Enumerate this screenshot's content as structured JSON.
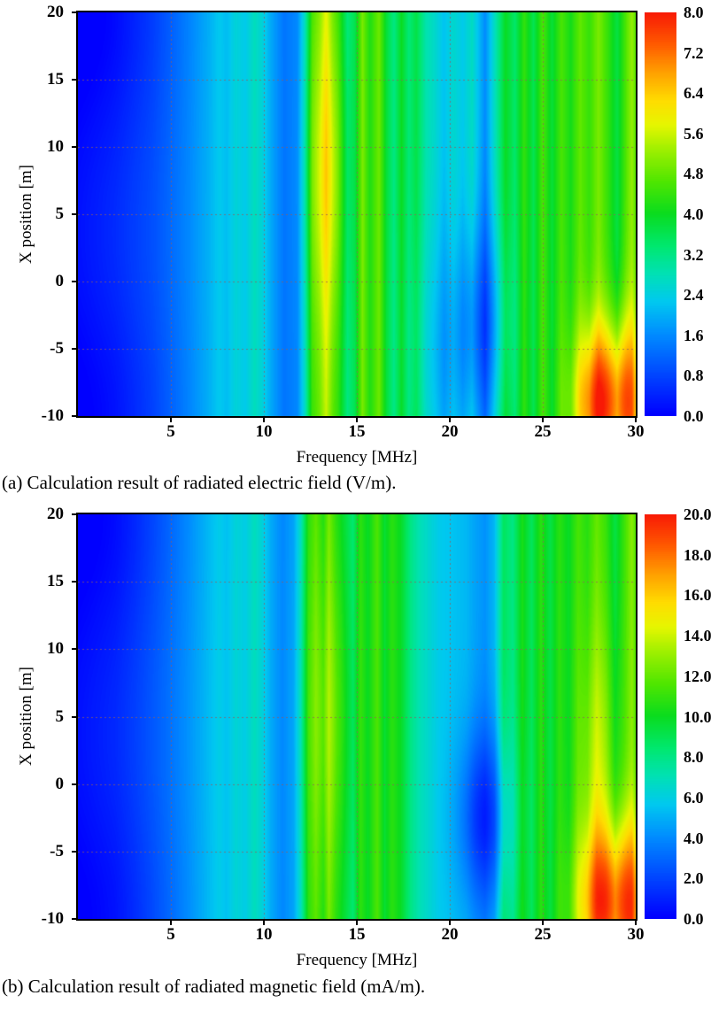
{
  "page": {
    "background": "#ffffff"
  },
  "colormap": {
    "name": "jet-rainbow",
    "stops": [
      [
        0.0,
        0,
        0,
        255
      ],
      [
        0.1,
        0,
        70,
        255
      ],
      [
        0.2,
        0,
        140,
        255
      ],
      [
        0.28,
        0,
        200,
        240
      ],
      [
        0.35,
        0,
        225,
        180
      ],
      [
        0.42,
        0,
        232,
        110
      ],
      [
        0.5,
        10,
        220,
        30
      ],
      [
        0.58,
        80,
        230,
        0
      ],
      [
        0.66,
        160,
        240,
        0
      ],
      [
        0.72,
        230,
        246,
        0
      ],
      [
        0.78,
        255,
        220,
        0
      ],
      [
        0.85,
        255,
        160,
        0
      ],
      [
        0.92,
        255,
        90,
        0
      ],
      [
        1.0,
        248,
        25,
        5
      ]
    ]
  },
  "grid": {
    "color": "rgba(145,95,95,0.75)",
    "dash": [
      2,
      3
    ],
    "x_lines": [
      5,
      10,
      15,
      20,
      25
    ],
    "y_lines": [
      15,
      10,
      5,
      0,
      -5
    ]
  },
  "chart_data": [
    {
      "type": "heatmap",
      "caption": "(a) Calculation result of radiated electric field (V/m).",
      "xlabel": "Frequency [MHz]",
      "ylabel": "X position [m]",
      "unit": "V/m",
      "xlim": [
        0,
        30
      ],
      "ylim": [
        -10,
        20
      ],
      "xticks": [
        5,
        10,
        15,
        20,
        25,
        30
      ],
      "yticks": [
        20,
        15,
        10,
        5,
        0,
        -5,
        -10
      ],
      "colorbar": {
        "min": 0.0,
        "max": 8.0,
        "tick_labels": [
          "8.0",
          "7.2",
          "6.4",
          "5.6",
          "4.8",
          "4.0",
          "3.2",
          "2.4",
          "1.6",
          "0.8",
          "0.0"
        ]
      },
      "freq_profile": [
        [
          0,
          0.25
        ],
        [
          2,
          0.55
        ],
        [
          3,
          0.75
        ],
        [
          4,
          0.95
        ],
        [
          5,
          1.25
        ],
        [
          6,
          1.6
        ],
        [
          7,
          2.0
        ],
        [
          7.6,
          2.3
        ],
        [
          8.0,
          2.15
        ],
        [
          8.5,
          2.5
        ],
        [
          9.0,
          2.3
        ],
        [
          9.5,
          2.75
        ],
        [
          9.9,
          2.5
        ],
        [
          10.4,
          1.9
        ],
        [
          11.1,
          1.35
        ],
        [
          11.8,
          1.55
        ],
        [
          12.2,
          2.6
        ],
        [
          12.6,
          4.4
        ],
        [
          13.0,
          4.8
        ],
        [
          13.35,
          5.5
        ],
        [
          13.7,
          4.7
        ],
        [
          14.0,
          4.3
        ],
        [
          14.5,
          3.2
        ],
        [
          14.9,
          3.6
        ],
        [
          15.3,
          5.0
        ],
        [
          15.7,
          4.2
        ],
        [
          16.2,
          4.9
        ],
        [
          16.6,
          3.8
        ],
        [
          17.0,
          3.2
        ],
        [
          17.4,
          4.0
        ],
        [
          17.8,
          3.3
        ],
        [
          18.2,
          3.7
        ],
        [
          18.7,
          2.9
        ],
        [
          19.2,
          2.6
        ],
        [
          19.7,
          2.2
        ],
        [
          20.2,
          2.6
        ],
        [
          20.7,
          2.3
        ],
        [
          21.2,
          2.7
        ],
        [
          21.9,
          1.6
        ],
        [
          22.5,
          2.9
        ],
        [
          23.0,
          4.0
        ],
        [
          23.5,
          3.4
        ],
        [
          24.0,
          4.4
        ],
        [
          24.5,
          3.6
        ],
        [
          25.0,
          4.6
        ],
        [
          25.5,
          3.8
        ],
        [
          26.0,
          4.6
        ],
        [
          26.5,
          4.1
        ],
        [
          27.0,
          4.8
        ],
        [
          27.5,
          4.4
        ],
        [
          28.0,
          5.0
        ],
        [
          28.5,
          4.4
        ],
        [
          29.0,
          3.7
        ],
        [
          29.5,
          4.7
        ],
        [
          29.8,
          5.2
        ],
        [
          30,
          4.7
        ]
      ],
      "hotspots": [
        {
          "f": 28.2,
          "x": -9,
          "sf": 1.0,
          "sx": 4.0,
          "amp": 3.3
        },
        {
          "f": 29.6,
          "x": -9,
          "sf": 0.5,
          "sx": 4.5,
          "amp": 1.5
        },
        {
          "f": 21.9,
          "x": -3,
          "sf": 0.9,
          "sx": 5.0,
          "amp": -0.9
        },
        {
          "f": 19.9,
          "x": -5,
          "sf": 1.3,
          "sx": 6.0,
          "amp": -0.5
        },
        {
          "f": 13.35,
          "x": 8,
          "sf": 0.7,
          "sx": 8.0,
          "amp": 1.0
        },
        {
          "f": 1.2,
          "x": 20,
          "sf": 2.6,
          "sx": 7.0,
          "amp": -0.45
        },
        {
          "f": 1.2,
          "x": -10,
          "sf": 2.6,
          "sx": 6.0,
          "amp": -0.35
        }
      ]
    },
    {
      "type": "heatmap",
      "caption": "(b) Calculation result of radiated magnetic field (mA/m).",
      "xlabel": "Frequency [MHz]",
      "ylabel": "X position [m]",
      "unit": "mA/m",
      "xlim": [
        0,
        30
      ],
      "ylim": [
        -10,
        20
      ],
      "xticks": [
        5,
        10,
        15,
        20,
        25,
        30
      ],
      "yticks": [
        20,
        15,
        10,
        5,
        0,
        -5,
        -10
      ],
      "colorbar": {
        "min": 0.0,
        "max": 20.0,
        "tick_labels": [
          "20.0",
          "18.0",
          "16.0",
          "14.0",
          "12.0",
          "10.0",
          "8.0",
          "6.0",
          "4.0",
          "2.0",
          "0.0"
        ]
      },
      "freq_profile": [
        [
          0,
          0.6
        ],
        [
          2,
          1.3
        ],
        [
          3,
          1.9
        ],
        [
          4,
          2.6
        ],
        [
          5,
          3.4
        ],
        [
          6,
          4.3
        ],
        [
          7,
          5.3
        ],
        [
          7.6,
          5.9
        ],
        [
          8.0,
          5.5
        ],
        [
          8.5,
          6.3
        ],
        [
          9.0,
          5.9
        ],
        [
          9.5,
          6.9
        ],
        [
          9.9,
          6.2
        ],
        [
          10.4,
          4.8
        ],
        [
          11.0,
          3.9
        ],
        [
          11.6,
          4.6
        ],
        [
          12.0,
          6.8
        ],
        [
          12.4,
          10.6
        ],
        [
          12.8,
          11.6
        ],
        [
          13.2,
          10.2
        ],
        [
          13.5,
          12.0
        ],
        [
          13.9,
          10.4
        ],
        [
          14.3,
          9.4
        ],
        [
          14.8,
          8.2
        ],
        [
          15.2,
          10.8
        ],
        [
          15.6,
          9.8
        ],
        [
          16.1,
          11.6
        ],
        [
          16.5,
          9.6
        ],
        [
          16.9,
          10.8
        ],
        [
          17.4,
          9.8
        ],
        [
          17.9,
          8.0
        ],
        [
          18.4,
          7.0
        ],
        [
          18.9,
          6.4
        ],
        [
          19.4,
          5.8
        ],
        [
          19.9,
          5.6
        ],
        [
          20.4,
          5.4
        ],
        [
          20.9,
          5.2
        ],
        [
          21.4,
          4.6
        ],
        [
          21.9,
          4.2
        ],
        [
          22.4,
          5.2
        ],
        [
          22.9,
          8.8
        ],
        [
          23.4,
          8.0
        ],
        [
          23.9,
          10.4
        ],
        [
          24.4,
          8.8
        ],
        [
          24.9,
          10.8
        ],
        [
          25.4,
          9.2
        ],
        [
          25.9,
          10.8
        ],
        [
          26.4,
          9.8
        ],
        [
          26.9,
          11.4
        ],
        [
          27.4,
          10.6
        ],
        [
          27.9,
          12.0
        ],
        [
          28.4,
          11.0
        ],
        [
          28.9,
          9.2
        ],
        [
          29.4,
          11.2
        ],
        [
          29.8,
          12.8
        ],
        [
          30,
          11.6
        ]
      ],
      "hotspots": [
        {
          "f": 28.4,
          "x": -9,
          "sf": 1.05,
          "sx": 4.2,
          "amp": 8.0
        },
        {
          "f": 29.7,
          "x": -9,
          "sf": 0.5,
          "sx": 4.5,
          "amp": 3.5
        },
        {
          "f": 28.0,
          "x": 2,
          "sf": 0.7,
          "sx": 7.0,
          "amp": 2.2
        },
        {
          "f": 21.9,
          "x": -2.5,
          "sf": 1.0,
          "sx": 4.5,
          "amp": -3.4
        },
        {
          "f": 13.5,
          "x": 5,
          "sf": 0.9,
          "sx": 9.0,
          "amp": 1.6
        },
        {
          "f": 1.2,
          "x": 20,
          "sf": 2.8,
          "sx": 7.0,
          "amp": -1.0
        },
        {
          "f": 1.2,
          "x": -10,
          "sf": 2.8,
          "sx": 6.0,
          "amp": -0.8
        }
      ]
    }
  ]
}
